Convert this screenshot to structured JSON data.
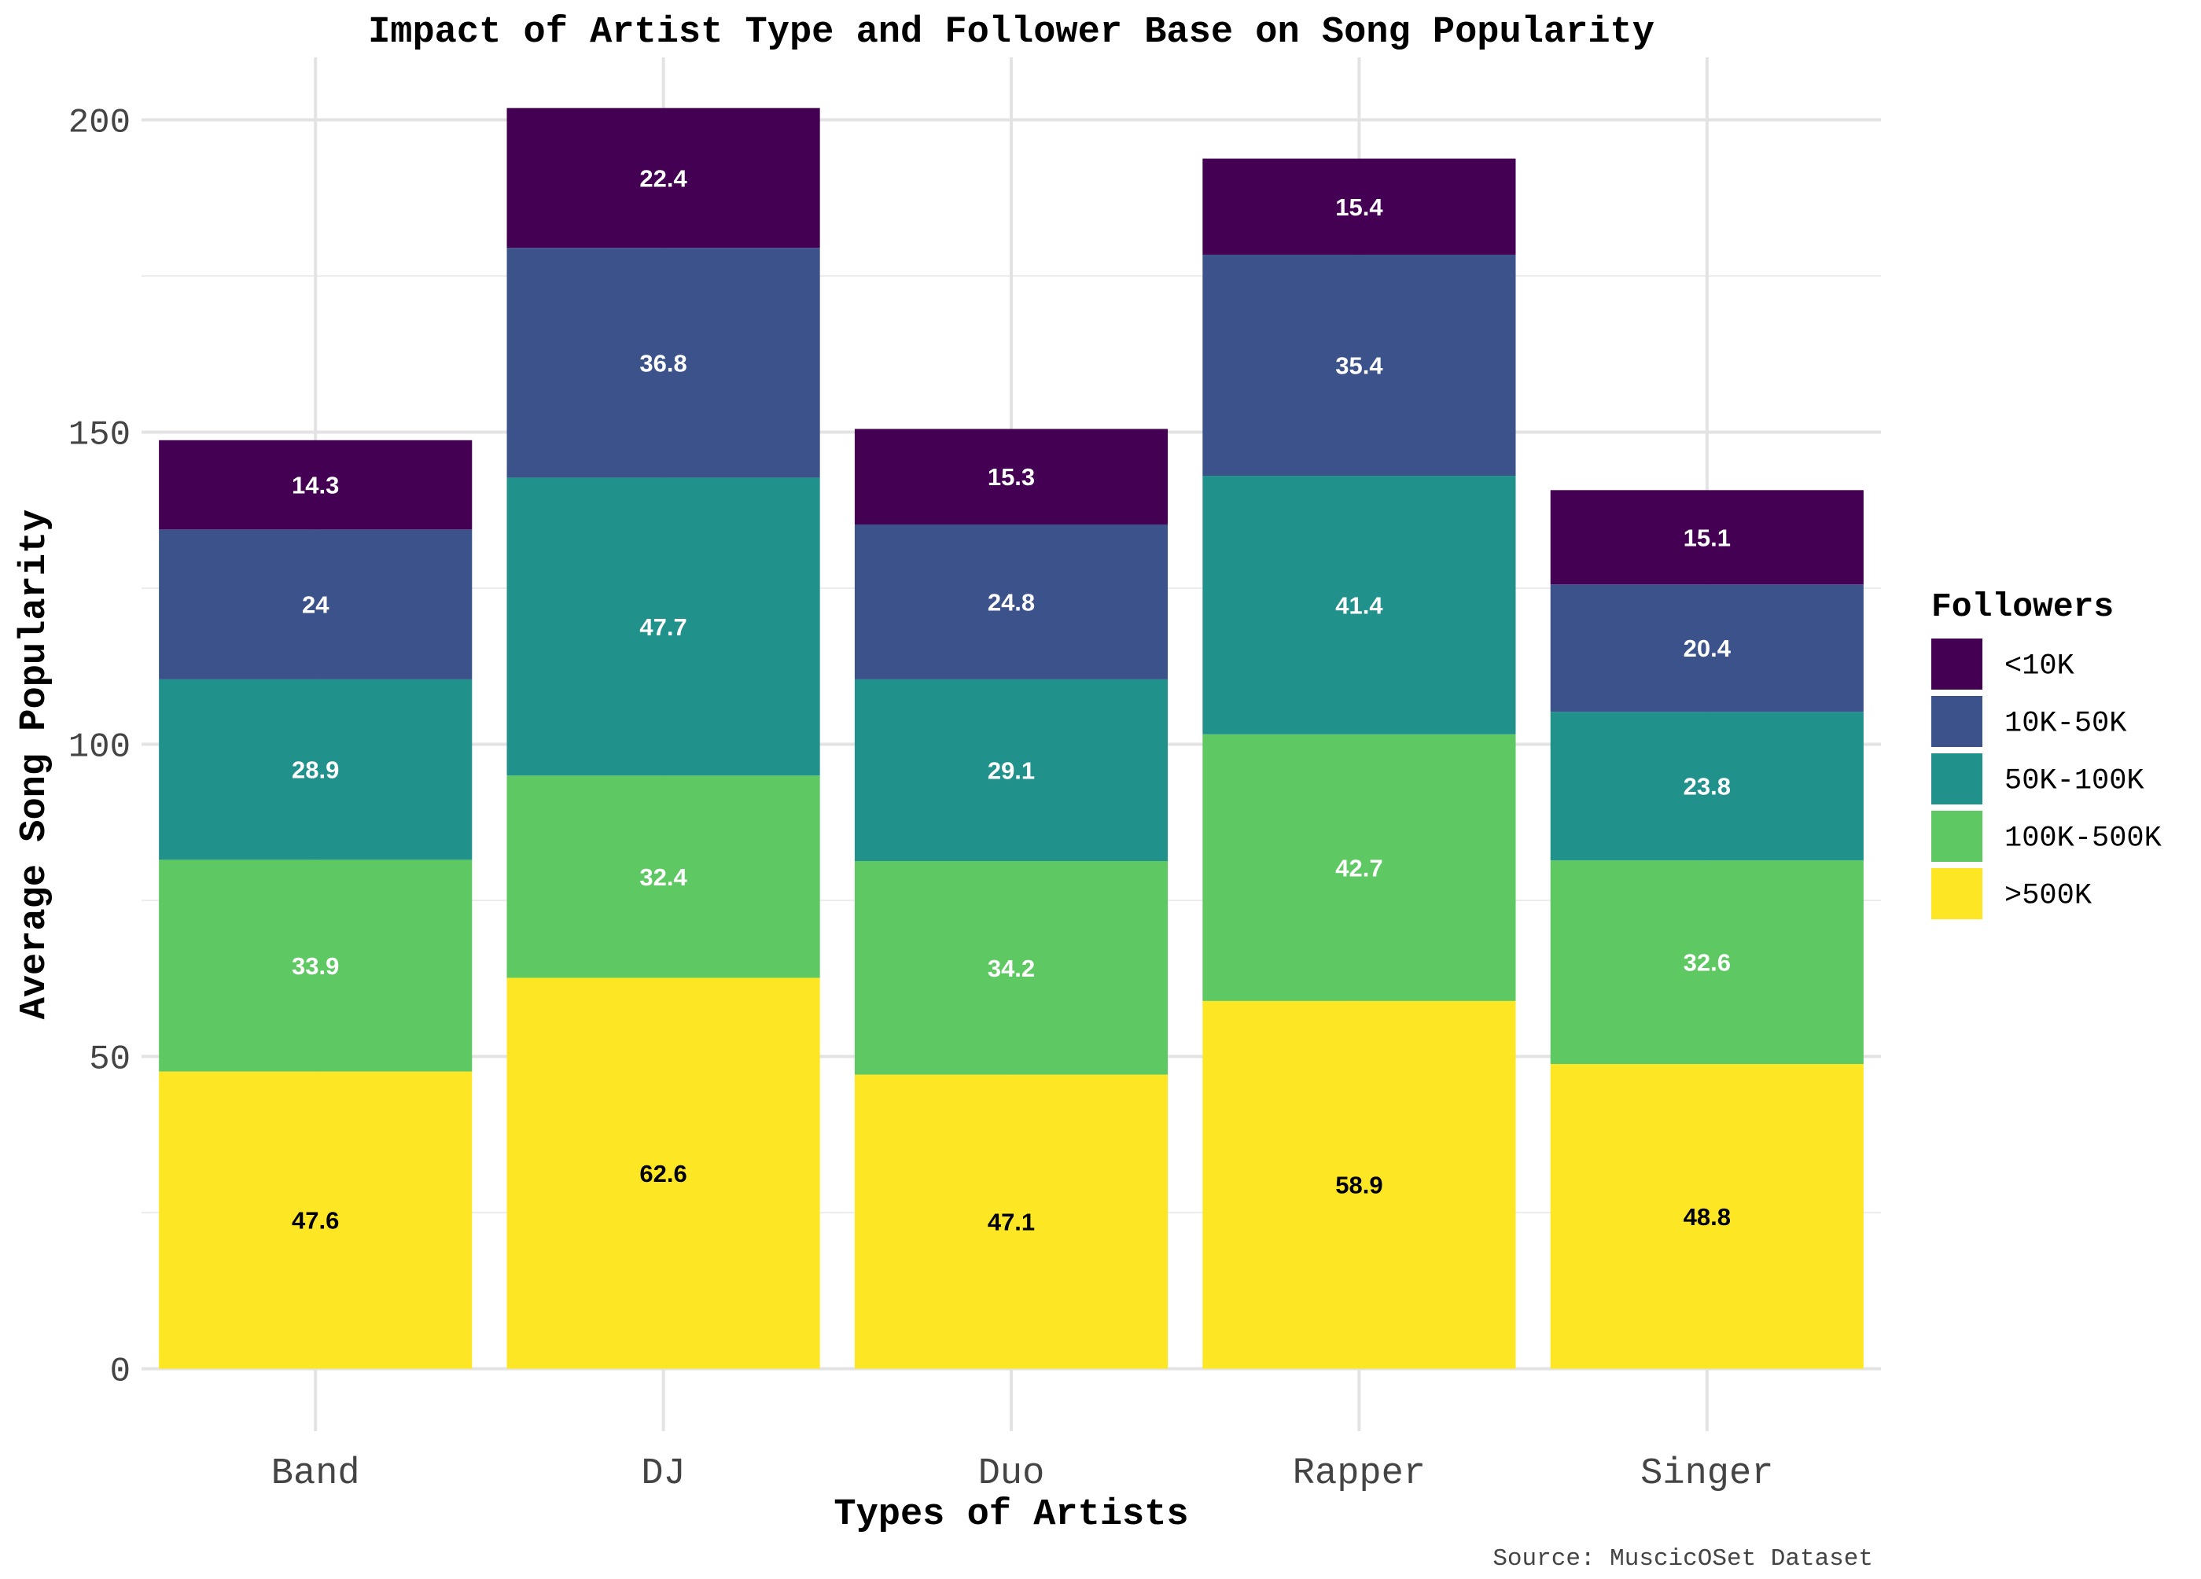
{
  "chart_data": {
    "type": "bar",
    "stacked": true,
    "title": "Impact of Artist Type and Follower Base on Song Popularity",
    "xlabel": "Types of Artists",
    "ylabel": "Average Song Popularity",
    "caption": "Source: MuscicOSet Dataset",
    "categories": [
      "Band",
      "DJ",
      "Duo",
      "Rapper",
      "Singer"
    ],
    "ylim": [
      -10,
      210
    ],
    "y_ticks": [
      0,
      50,
      100,
      150,
      200
    ],
    "grid": true,
    "legend": {
      "title": "Followers",
      "position": "right"
    },
    "series": [
      {
        "name": ">500K",
        "color": "#FDE725",
        "label_color": "#000000",
        "values": [
          47.6,
          62.6,
          47.1,
          58.9,
          48.8
        ]
      },
      {
        "name": "100K-500K",
        "color": "#5EC962",
        "label_color": "#ffffff",
        "values": [
          33.9,
          32.4,
          34.2,
          42.7,
          32.6
        ]
      },
      {
        "name": "50K-100K",
        "color": "#21918C",
        "label_color": "#ffffff",
        "values": [
          28.9,
          47.7,
          29.1,
          41.4,
          23.8
        ]
      },
      {
        "name": "10K-50K",
        "color": "#3B528B",
        "label_color": "#ffffff",
        "values": [
          24,
          36.8,
          24.8,
          35.4,
          20.4
        ]
      },
      {
        "name": "<10K",
        "color": "#440154",
        "label_color": "#ffffff",
        "values": [
          14.3,
          22.4,
          15.3,
          15.4,
          15.1
        ]
      }
    ],
    "legend_order": [
      "<10K",
      "10K-50K",
      "50K-100K",
      "100K-500K",
      ">500K"
    ]
  }
}
